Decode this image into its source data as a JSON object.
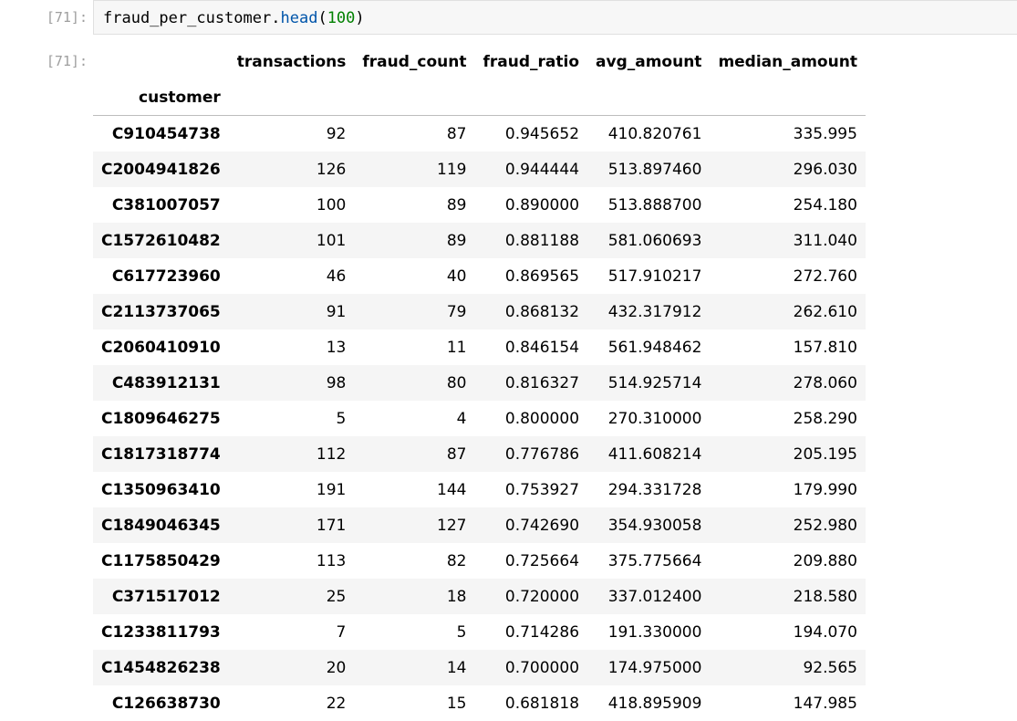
{
  "cell": {
    "in_prompt": "[71]:",
    "out_prompt": "[71]:",
    "code": {
      "name": "fraud_per_customer",
      "dot": ".",
      "method": "head",
      "open": "(",
      "arg": "100",
      "close": ")"
    }
  },
  "table": {
    "columns": [
      "transactions",
      "fraud_count",
      "fraud_ratio",
      "avg_amount",
      "median_amount"
    ],
    "index_name": "customer",
    "rows": [
      {
        "customer": "C910454738",
        "transactions": "92",
        "fraud_count": "87",
        "fraud_ratio": "0.945652",
        "avg_amount": "410.820761",
        "median_amount": "335.995"
      },
      {
        "customer": "C2004941826",
        "transactions": "126",
        "fraud_count": "119",
        "fraud_ratio": "0.944444",
        "avg_amount": "513.897460",
        "median_amount": "296.030"
      },
      {
        "customer": "C381007057",
        "transactions": "100",
        "fraud_count": "89",
        "fraud_ratio": "0.890000",
        "avg_amount": "513.888700",
        "median_amount": "254.180"
      },
      {
        "customer": "C1572610482",
        "transactions": "101",
        "fraud_count": "89",
        "fraud_ratio": "0.881188",
        "avg_amount": "581.060693",
        "median_amount": "311.040"
      },
      {
        "customer": "C617723960",
        "transactions": "46",
        "fraud_count": "40",
        "fraud_ratio": "0.869565",
        "avg_amount": "517.910217",
        "median_amount": "272.760"
      },
      {
        "customer": "C2113737065",
        "transactions": "91",
        "fraud_count": "79",
        "fraud_ratio": "0.868132",
        "avg_amount": "432.317912",
        "median_amount": "262.610"
      },
      {
        "customer": "C2060410910",
        "transactions": "13",
        "fraud_count": "11",
        "fraud_ratio": "0.846154",
        "avg_amount": "561.948462",
        "median_amount": "157.810"
      },
      {
        "customer": "C483912131",
        "transactions": "98",
        "fraud_count": "80",
        "fraud_ratio": "0.816327",
        "avg_amount": "514.925714",
        "median_amount": "278.060"
      },
      {
        "customer": "C1809646275",
        "transactions": "5",
        "fraud_count": "4",
        "fraud_ratio": "0.800000",
        "avg_amount": "270.310000",
        "median_amount": "258.290"
      },
      {
        "customer": "C1817318774",
        "transactions": "112",
        "fraud_count": "87",
        "fraud_ratio": "0.776786",
        "avg_amount": "411.608214",
        "median_amount": "205.195"
      },
      {
        "customer": "C1350963410",
        "transactions": "191",
        "fraud_count": "144",
        "fraud_ratio": "0.753927",
        "avg_amount": "294.331728",
        "median_amount": "179.990"
      },
      {
        "customer": "C1849046345",
        "transactions": "171",
        "fraud_count": "127",
        "fraud_ratio": "0.742690",
        "avg_amount": "354.930058",
        "median_amount": "252.980"
      },
      {
        "customer": "C1175850429",
        "transactions": "113",
        "fraud_count": "82",
        "fraud_ratio": "0.725664",
        "avg_amount": "375.775664",
        "median_amount": "209.880"
      },
      {
        "customer": "C371517012",
        "transactions": "25",
        "fraud_count": "18",
        "fraud_ratio": "0.720000",
        "avg_amount": "337.012400",
        "median_amount": "218.580"
      },
      {
        "customer": "C1233811793",
        "transactions": "7",
        "fraud_count": "5",
        "fraud_ratio": "0.714286",
        "avg_amount": "191.330000",
        "median_amount": "194.070"
      },
      {
        "customer": "C1454826238",
        "transactions": "20",
        "fraud_count": "14",
        "fraud_ratio": "0.700000",
        "avg_amount": "174.975000",
        "median_amount": "92.565"
      },
      {
        "customer": "C126638730",
        "transactions": "22",
        "fraud_count": "15",
        "fraud_ratio": "0.681818",
        "avg_amount": "418.895909",
        "median_amount": "147.985"
      }
    ]
  }
}
